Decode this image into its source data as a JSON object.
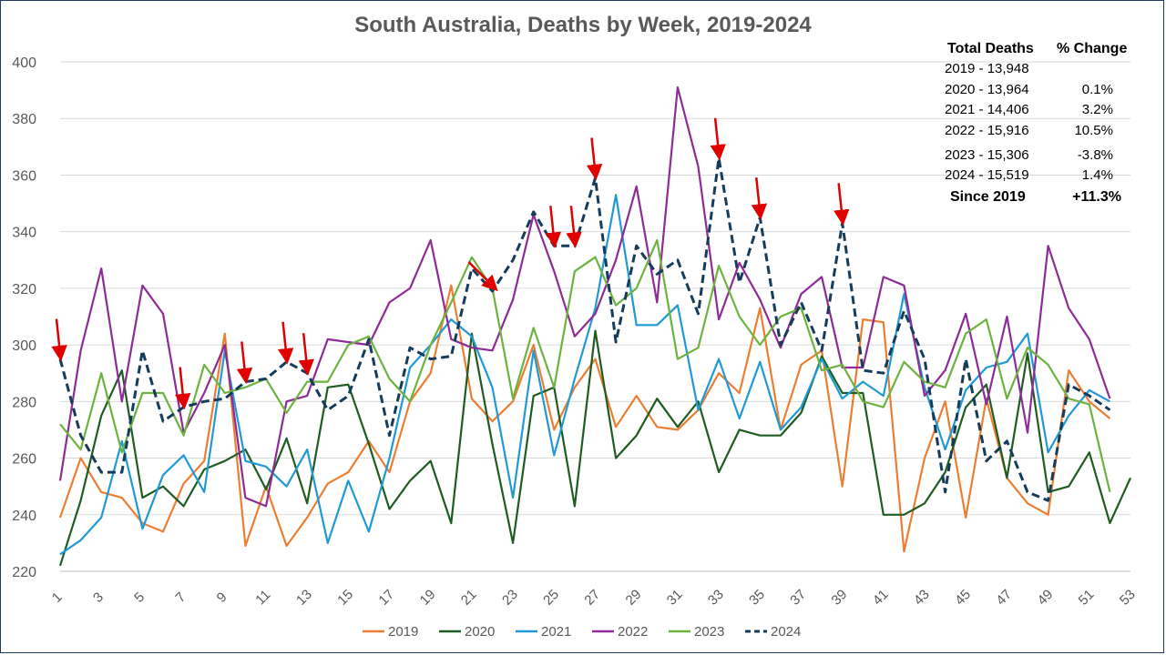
{
  "chart_data": {
    "type": "line",
    "title": "South Australia, Deaths by Week, 2019-2024",
    "xlabel": "",
    "ylabel": "",
    "ylim": [
      220,
      400
    ],
    "yticks": [
      220,
      240,
      260,
      280,
      300,
      320,
      340,
      360,
      380,
      400
    ],
    "xlim": [
      1,
      53
    ],
    "xticks": [
      1,
      3,
      5,
      7,
      9,
      11,
      13,
      15,
      17,
      19,
      21,
      23,
      25,
      27,
      29,
      31,
      33,
      35,
      37,
      39,
      41,
      43,
      45,
      47,
      49,
      51,
      53
    ],
    "grid": "horizontal",
    "legend_position": "bottom",
    "series": [
      {
        "name": "2019",
        "color": "#ed7d31",
        "dash": false,
        "values": [
          239,
          260,
          248,
          246,
          237,
          234,
          251,
          259,
          304,
          229,
          250,
          229,
          239,
          251,
          255,
          266,
          255,
          280,
          290,
          321,
          281,
          273,
          280,
          300,
          270,
          285,
          295,
          271,
          282,
          271,
          270,
          277,
          290,
          283,
          313,
          270,
          293,
          298,
          250,
          309,
          308,
          227,
          260,
          280,
          239,
          281,
          253,
          244,
          240,
          291,
          280,
          274
        ]
      },
      {
        "name": "2020",
        "color": "#1e5c21",
        "dash": false,
        "values": [
          222,
          245,
          275,
          291,
          246,
          250,
          243,
          256,
          259,
          263,
          249,
          267,
          244,
          285,
          286,
          265,
          242,
          252,
          259,
          237,
          304,
          265,
          230,
          282,
          285,
          243,
          305,
          260,
          268,
          281,
          271,
          280,
          255,
          270,
          268,
          268,
          276,
          296,
          283,
          283,
          240,
          240,
          244,
          255,
          278,
          286,
          253,
          297,
          248,
          250,
          262,
          237,
          253
        ]
      },
      {
        "name": "2021",
        "color": "#1f9ad6",
        "dash": false,
        "values": [
          226,
          231,
          239,
          266,
          235,
          254,
          261,
          248,
          298,
          259,
          257,
          250,
          263,
          230,
          252,
          234,
          260,
          292,
          300,
          309,
          303,
          285,
          246,
          298,
          261,
          288,
          313,
          353,
          307,
          307,
          314,
          277,
          295,
          274,
          294,
          270,
          278,
          295,
          281,
          287,
          282,
          318,
          285,
          263,
          284,
          292,
          294,
          304,
          262,
          275,
          284,
          280
        ]
      },
      {
        "name": "2022",
        "color": "#8e2b96",
        "dash": false,
        "values": [
          252,
          298,
          327,
          280,
          321,
          311,
          269,
          283,
          300,
          246,
          243,
          280,
          282,
          302,
          301,
          300,
          315,
          320,
          337,
          302,
          299,
          298,
          316,
          346,
          326,
          303,
          311,
          330,
          356,
          315,
          391,
          363,
          309,
          329,
          316,
          299,
          318,
          324,
          292,
          292,
          324,
          321,
          282,
          291,
          311,
          279,
          310,
          269,
          335,
          313,
          302,
          281
        ]
      },
      {
        "name": "2023",
        "color": "#6cb33f",
        "dash": false,
        "values": [
          272,
          263,
          290,
          262,
          283,
          283,
          268,
          293,
          283,
          285,
          288,
          276,
          287,
          287,
          300,
          303,
          288,
          280,
          300,
          315,
          331,
          320,
          281,
          306,
          285,
          326,
          331,
          314,
          320,
          337,
          295,
          299,
          328,
          310,
          300,
          310,
          313,
          291,
          293,
          280,
          278,
          294,
          287,
          285,
          304,
          309,
          281,
          299,
          293,
          281,
          279,
          248
        ]
      },
      {
        "name": "2024",
        "color": "#153c5a",
        "dash": true,
        "values": [
          295,
          268,
          255,
          255,
          298,
          273,
          278,
          280,
          281,
          287,
          288,
          294,
          290,
          277,
          282,
          302,
          268,
          299,
          295,
          296,
          327,
          319,
          330,
          347,
          335,
          335,
          359,
          301,
          335,
          325,
          330,
          311,
          366,
          322,
          345,
          300,
          315,
          298,
          343,
          291,
          290,
          312,
          295,
          248,
          295,
          259,
          266,
          248,
          245,
          286,
          282,
          277
        ]
      }
    ],
    "arrow_weeks": [
      1,
      7,
      10,
      12,
      13,
      22,
      25,
      26,
      27,
      33,
      35,
      39
    ]
  },
  "annotation": {
    "header_left": "Total Deaths",
    "header_right": "% Change",
    "rows": [
      {
        "label": "2019 - 13,948",
        "change": ""
      },
      {
        "label": "2020 - 13,964",
        "change": "0.1%"
      },
      {
        "label": "2021 - 14,406",
        "change": "3.2%"
      },
      {
        "label": "2022 - 15,916",
        "change": "10.5%"
      },
      {
        "label": "2023 - 15,306",
        "change": "-3.8%"
      },
      {
        "label": "2024 - 15,519",
        "change": "1.4%"
      }
    ],
    "total_label": "Since 2019",
    "total_change": "+11.3%"
  }
}
